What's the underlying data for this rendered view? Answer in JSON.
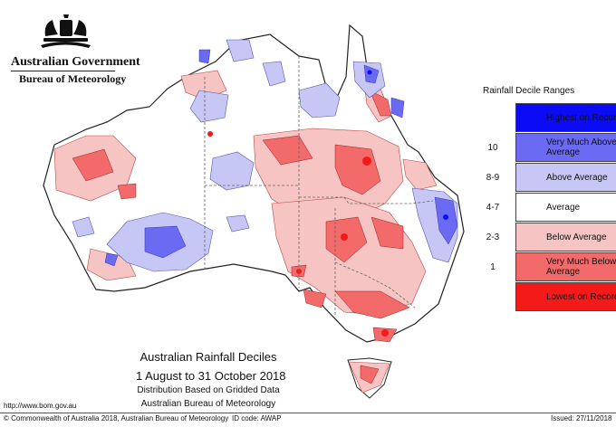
{
  "header": {
    "government": "Australian Government",
    "bureau": "Bureau of Meteorology"
  },
  "legend": {
    "title": "Rainfall Decile Ranges",
    "items": [
      {
        "range": "",
        "label": "Highest on Record",
        "color": "#0b0bf5"
      },
      {
        "range": "10",
        "label": "Very Much Above Average",
        "color": "#6a6af2"
      },
      {
        "range": "8-9",
        "label": "Above Average",
        "color": "#c7c7f6"
      },
      {
        "range": "4-7",
        "label": "Average",
        "color": "#ffffff"
      },
      {
        "range": "2-3",
        "label": "Below Average",
        "color": "#f7c4c4"
      },
      {
        "range": "1",
        "label": "Very Much Below Average",
        "color": "#f26a6a"
      },
      {
        "range": "",
        "label": "Lowest on Record",
        "color": "#f51a1a"
      }
    ]
  },
  "map_title": {
    "title": "Australian Rainfall Deciles",
    "period": "1 August to 31 October 2018",
    "subtitle_1": "Distribution Based on Gridded Data",
    "subtitle_2": "Australian Bureau of Meteorology"
  },
  "footer": {
    "url": "http://www.bom.gov.au",
    "copyright": "© Commonwealth of Australia 2018, Australian Bureau of Meteorology",
    "id_code": "ID code: AWAP",
    "issued": "Issued: 27/11/2018"
  }
}
